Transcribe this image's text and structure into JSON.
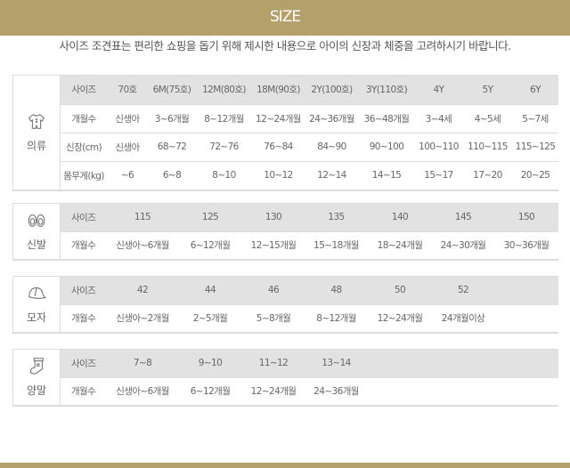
{
  "header": {
    "title": "SIZE"
  },
  "subtitle": "사이즈 조견표는 편리한 쇼핑을 돕기 위해 제시한 내용으로 아이의 신장과 체중을 고려하시기 바랍니다.",
  "colors": {
    "accent": "#b3a06a",
    "header_row": "#e2e2e2"
  },
  "sections": [
    {
      "label": "의류",
      "icon": "baby-clothes-icon",
      "rows": [
        [
          "사이즈",
          "70호",
          "6M(75호)",
          "12M(80호)",
          "18M(90호)",
          "2Y(100호)",
          "3Y(110호)",
          "4Y",
          "5Y",
          "6Y"
        ],
        [
          "개월수",
          "신생아",
          "3~6개월",
          "8~12개월",
          "12~24개월",
          "24~36개월",
          "36~48개월",
          "3~4세",
          "4~5세",
          "5~7세"
        ],
        [
          "신장(cm)",
          "신생아",
          "68~72",
          "72~76",
          "76~84",
          "84~90",
          "90~100",
          "100~110",
          "110~115",
          "115~125"
        ],
        [
          "몸무게(kg)",
          "~6",
          "6~8",
          "8~10",
          "10~12",
          "12~14",
          "14~15",
          "15~17",
          "17~20",
          "20~25"
        ]
      ]
    },
    {
      "label": "신발",
      "icon": "shoes-icon",
      "rows": [
        [
          "사이즈",
          "115",
          "125",
          "130",
          "135",
          "140",
          "145",
          "150"
        ],
        [
          "개월수",
          "신생아~6개월",
          "6~12개월",
          "12~15개월",
          "15~18개월",
          "18~24개월",
          "24~30개월",
          "30~36개월"
        ]
      ]
    },
    {
      "label": "모자",
      "icon": "cap-icon",
      "rows": [
        [
          "사이즈",
          "42",
          "44",
          "46",
          "48",
          "50",
          "52",
          ""
        ],
        [
          "개월수",
          "신생아~2개월",
          "2~5개월",
          "5~8개월",
          "8~12개월",
          "12~24개월",
          "24개월이상",
          ""
        ]
      ]
    },
    {
      "label": "양말",
      "icon": "sock-icon",
      "rows": [
        [
          "사이즈",
          "7~8",
          "9~10",
          "11~12",
          "13~14",
          "",
          "",
          ""
        ],
        [
          "개월수",
          "신생아~6개월",
          "6~12개월",
          "12~24개월",
          "24~36개월",
          "",
          "",
          ""
        ]
      ]
    }
  ]
}
